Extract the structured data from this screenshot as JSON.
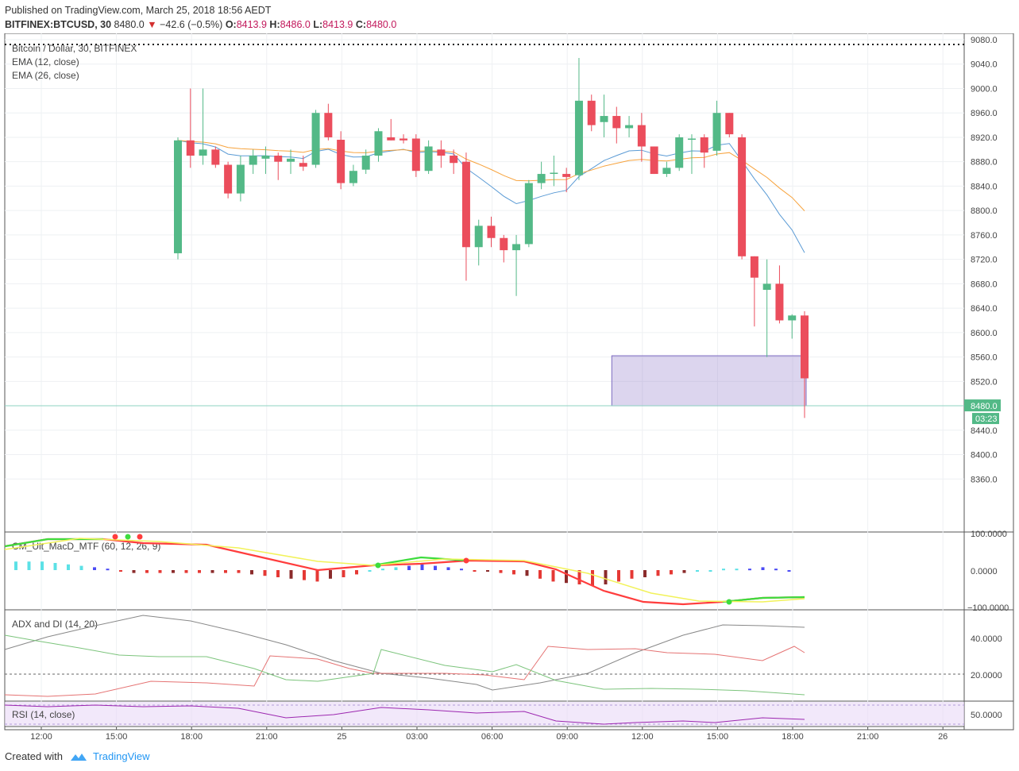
{
  "header": {
    "published": "Published on TradingView.com, March 25, 2018 18:56 AEDT",
    "symbol": "BITFINEX:BTCUSD, 30",
    "last": "8480.0",
    "change": "−42.6 (−0.5%)",
    "o_label": "O:",
    "o": "8413.9",
    "h_label": "H:",
    "h": "8486.0",
    "l_label": "L:",
    "l": "8413.9",
    "c_label": "C:",
    "c": "8480.0"
  },
  "chart_data": {
    "type": "candlestick",
    "title": "Bitcoin / Dollar, 30, BITFINEX",
    "legend": [
      "EMA (12, close)",
      "EMA (26, close)"
    ],
    "ylim": [
      8320,
      9080
    ],
    "y_ticks": [
      "9080.0",
      "9040.0",
      "9000.0",
      "8960.0",
      "8920.0",
      "8880.0",
      "8840.0",
      "8800.0",
      "8760.0",
      "8720.0",
      "8680.0",
      "8640.0",
      "8600.0",
      "8560.0",
      "8520.0",
      "8480.0",
      "8440.0",
      "8400.0",
      "8360.0"
    ],
    "x_ticks": [
      "12:00",
      "15:00",
      "18:00",
      "21:00",
      "25",
      "03:00",
      "06:00",
      "09:00",
      "12:00",
      "15:00",
      "18:00",
      "21:00",
      "26"
    ],
    "price_label": "8480.0",
    "countdown": "03:23",
    "candles": [
      {
        "o": 8730,
        "h": 8920,
        "l": 8720,
        "c": 8915
      },
      {
        "o": 8915,
        "h": 9000,
        "l": 8870,
        "c": 8890
      },
      {
        "o": 8890,
        "h": 9000,
        "l": 8875,
        "c": 8900
      },
      {
        "o": 8900,
        "h": 8905,
        "l": 8870,
        "c": 8875
      },
      {
        "o": 8875,
        "h": 8880,
        "l": 8820,
        "c": 8828
      },
      {
        "o": 8828,
        "h": 8890,
        "l": 8815,
        "c": 8875
      },
      {
        "o": 8875,
        "h": 8900,
        "l": 8860,
        "c": 8890
      },
      {
        "o": 8885,
        "h": 8905,
        "l": 8860,
        "c": 8890
      },
      {
        "o": 8890,
        "h": 8895,
        "l": 8850,
        "c": 8880
      },
      {
        "o": 8880,
        "h": 8900,
        "l": 8860,
        "c": 8885
      },
      {
        "o": 8878,
        "h": 8890,
        "l": 8865,
        "c": 8872
      },
      {
        "o": 8875,
        "h": 8965,
        "l": 8870,
        "c": 8960
      },
      {
        "o": 8960,
        "h": 8975,
        "l": 8915,
        "c": 8920
      },
      {
        "o": 8916,
        "h": 8930,
        "l": 8835,
        "c": 8845
      },
      {
        "o": 8845,
        "h": 8875,
        "l": 8840,
        "c": 8865
      },
      {
        "o": 8867,
        "h": 8900,
        "l": 8860,
        "c": 8890
      },
      {
        "o": 8890,
        "h": 8935,
        "l": 8880,
        "c": 8930
      },
      {
        "o": 8920,
        "h": 8950,
        "l": 8915,
        "c": 8915
      },
      {
        "o": 8918,
        "h": 8925,
        "l": 8910,
        "c": 8915
      },
      {
        "o": 8918,
        "h": 8925,
        "l": 8855,
        "c": 8865
      },
      {
        "o": 8865,
        "h": 8915,
        "l": 8860,
        "c": 8905
      },
      {
        "o": 8900,
        "h": 8915,
        "l": 8870,
        "c": 8890
      },
      {
        "o": 8890,
        "h": 8900,
        "l": 8860,
        "c": 8878
      },
      {
        "o": 8880,
        "h": 8895,
        "l": 8685,
        "c": 8740
      },
      {
        "o": 8740,
        "h": 8785,
        "l": 8710,
        "c": 8775
      },
      {
        "o": 8775,
        "h": 8790,
        "l": 8740,
        "c": 8755
      },
      {
        "o": 8755,
        "h": 8760,
        "l": 8715,
        "c": 8735
      },
      {
        "o": 8735,
        "h": 8760,
        "l": 8660,
        "c": 8745
      },
      {
        "o": 8745,
        "h": 8850,
        "l": 8740,
        "c": 8845
      },
      {
        "o": 8845,
        "h": 8880,
        "l": 8835,
        "c": 8860
      },
      {
        "o": 8862,
        "h": 8890,
        "l": 8840,
        "c": 8862
      },
      {
        "o": 8860,
        "h": 8870,
        "l": 8830,
        "c": 8855
      },
      {
        "o": 8858,
        "h": 9050,
        "l": 8850,
        "c": 8980
      },
      {
        "o": 8980,
        "h": 8990,
        "l": 8930,
        "c": 8940
      },
      {
        "o": 8945,
        "h": 8990,
        "l": 8920,
        "c": 8955
      },
      {
        "o": 8955,
        "h": 8970,
        "l": 8910,
        "c": 8935
      },
      {
        "o": 8935,
        "h": 8955,
        "l": 8920,
        "c": 8940
      },
      {
        "o": 8940,
        "h": 8960,
        "l": 8880,
        "c": 8905
      },
      {
        "o": 8905,
        "h": 8905,
        "l": 8860,
        "c": 8860
      },
      {
        "o": 8860,
        "h": 8880,
        "l": 8855,
        "c": 8870
      },
      {
        "o": 8870,
        "h": 8925,
        "l": 8865,
        "c": 8920
      },
      {
        "o": 8918,
        "h": 8925,
        "l": 8860,
        "c": 8918
      },
      {
        "o": 8920,
        "h": 8925,
        "l": 8870,
        "c": 8895
      },
      {
        "o": 8898,
        "h": 8980,
        "l": 8890,
        "c": 8960
      },
      {
        "o": 8960,
        "h": 8960,
        "l": 8920,
        "c": 8925
      },
      {
        "o": 8920,
        "h": 8925,
        "l": 8720,
        "c": 8725
      },
      {
        "o": 8725,
        "h": 8725,
        "l": 8610,
        "c": 8690
      },
      {
        "o": 8670,
        "h": 8720,
        "l": 8560,
        "c": 8680
      },
      {
        "o": 8680,
        "h": 8710,
        "l": 8615,
        "c": 8620
      },
      {
        "o": 8620,
        "h": 8630,
        "l": 8590,
        "c": 8628
      },
      {
        "o": 8628,
        "h": 8635,
        "l": 8460,
        "c": 8525
      }
    ],
    "box": {
      "from": 8480,
      "to": 8562
    }
  },
  "indicators": {
    "ema12": "EMA (12, close)",
    "ema26": "EMA (26, close)",
    "macd": {
      "label": "CM_Ult_MacD_MTF (60, 12, 26, 9)",
      "ticks": [
        "100.0000",
        "0.0000",
        "−100.0000"
      ]
    },
    "adx": {
      "label": "ADX and DI (14, 20)",
      "ticks": [
        "40.0000",
        "20.0000"
      ]
    },
    "rsi": {
      "label": "RSI (14, close)",
      "ticks": [
        "50.0000"
      ]
    }
  },
  "footer": {
    "created": "Created with",
    "brand": "TradingView"
  },
  "colors": {
    "up": "#53b987",
    "down": "#eb4d5c",
    "ema12": "#5b9bd5",
    "ema26": "#f7a33d",
    "box": "#9b88cf",
    "grid": "#eef0f3"
  }
}
